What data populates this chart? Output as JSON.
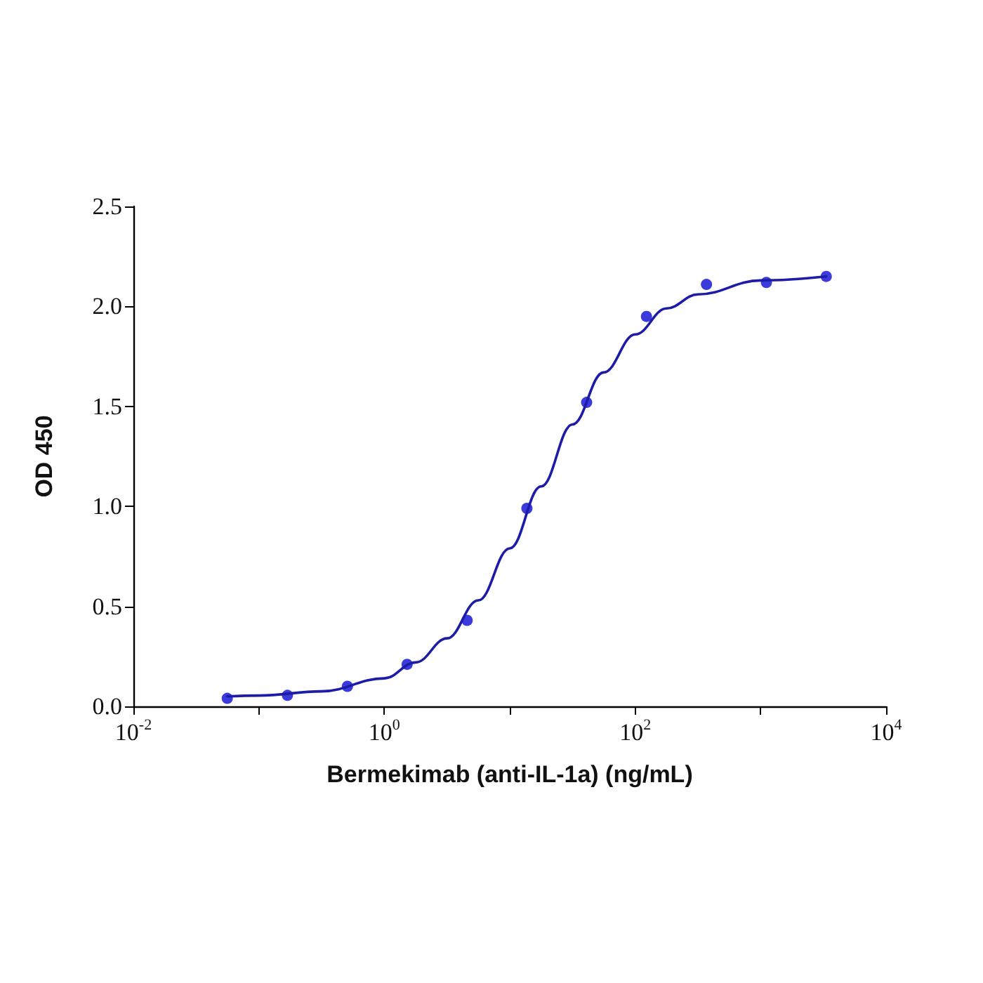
{
  "chart_data": {
    "type": "scatter",
    "xlabel": "Bermekimab (anti-IL-1a) (ng/mL)",
    "ylabel": "OD 450",
    "log": "x",
    "grid": false,
    "marker": "circle",
    "xlim": [
      0.01,
      10000
    ],
    "xticks": [
      {
        "value": 0.01,
        "label": "10$^{-2}$"
      },
      {
        "value": 0.1,
        "label": null
      },
      {
        "value": 1,
        "label": "10$^{0}$"
      },
      {
        "value": 10,
        "label": null
      },
      {
        "value": 100,
        "label": "10$^{2}$"
      },
      {
        "value": 1000,
        "label": null
      },
      {
        "value": 10000,
        "label": "10$^{4}$"
      }
    ],
    "ylim": [
      0,
      2.5
    ],
    "yticks": [
      {
        "value": 0,
        "label": "0.0"
      },
      0.5,
      {
        "value": 1,
        "label": "1.0"
      },
      1.5,
      {
        "value": 2,
        "label": "2.0"
      },
      2.5
    ],
    "series": [
      {
        "color": "#0a0ad2",
        "x": [
          0.056,
          0.169,
          0.508,
          1.52,
          4.57,
          13.7,
          41,
          123,
          370,
          1111,
          3333
        ],
        "values": [
          0.04,
          0.055,
          0.1,
          0.21,
          0.43,
          0.99,
          1.52,
          1.95,
          2.11,
          2.12,
          2.15
        ]
      },
      {
        "type": "line",
        "color": "#1c1ca8",
        "marker": "none",
        "line_style": "solid",
        "x": [
          0.056,
          0.1,
          0.316,
          1,
          1.78,
          3.16,
          5.62,
          10,
          17.8,
          31.6,
          56,
          100,
          178,
          316,
          1000,
          3333
        ],
        "values": [
          0.05,
          0.054,
          0.075,
          0.14,
          0.22,
          0.34,
          0.53,
          0.79,
          1.1,
          1.41,
          1.67,
          1.86,
          1.99,
          2.06,
          2.13,
          2.15
        ]
      }
    ]
  }
}
